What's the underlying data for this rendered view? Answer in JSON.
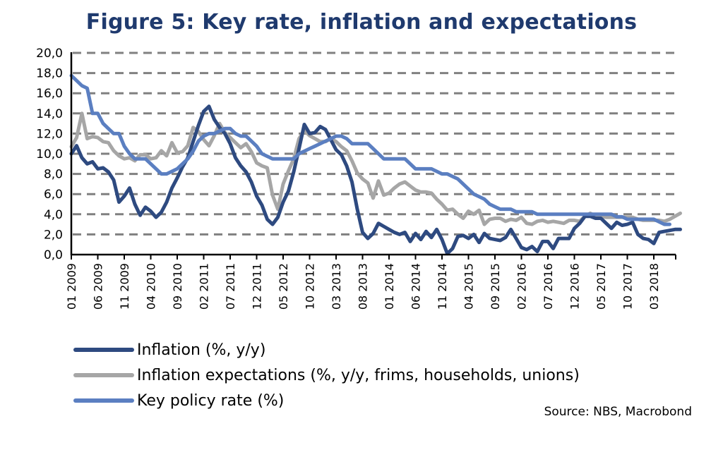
{
  "chart_data": {
    "type": "line",
    "title": "Figure 5: Key rate, inflation and expectations",
    "xlabel": "",
    "ylabel": "",
    "ylim": [
      0,
      20
    ],
    "yticks": [
      "0,0",
      "2,0",
      "4,0",
      "6,0",
      "8,0",
      "10,0",
      "12,0",
      "14,0",
      "16,0",
      "18,0",
      "20,0"
    ],
    "ytick_values": [
      0,
      2,
      4,
      6,
      8,
      10,
      12,
      14,
      16,
      18,
      20
    ],
    "grid": "horizontal-dashed",
    "legend_position": "bottom-left",
    "start_month": "2009-01",
    "xtick_labels": [
      "01 2009",
      "06 2009",
      "11 2009",
      "04 2010",
      "09 2010",
      "02 2011",
      "07 2011",
      "12 2011",
      "05 2012",
      "10 2012",
      "03 2013",
      "08 2013",
      "01 2014",
      "06 2014",
      "11 2014",
      "04 2015",
      "09 2015",
      "02 2016",
      "07 2016",
      "12 2016",
      "05 2017",
      "10 2017",
      "03 2018"
    ],
    "xtick_step_months": 5,
    "colors": {
      "inflation": "#2e4a80",
      "expectations": "#a6a6a6",
      "key_rate": "#5b7fc1"
    },
    "series": [
      {
        "key": "inflation",
        "name": "Inflation (%, y/y)",
        "values": [
          10.0,
          10.8,
          9.6,
          9.0,
          9.2,
          8.5,
          8.6,
          8.2,
          7.4,
          5.2,
          5.8,
          6.6,
          5.0,
          3.9,
          4.7,
          4.3,
          3.7,
          4.2,
          5.2,
          6.6,
          7.6,
          8.7,
          9.6,
          11.2,
          12.8,
          14.2,
          14.7,
          13.4,
          12.6,
          12.0,
          11.0,
          9.6,
          8.8,
          8.2,
          7.2,
          5.8,
          4.9,
          3.5,
          3.0,
          3.7,
          5.2,
          6.3,
          8.2,
          10.5,
          12.9,
          12.0,
          12.1,
          12.7,
          12.4,
          11.4,
          10.4,
          9.9,
          8.8,
          7.2,
          4.5,
          2.2,
          1.6,
          2.1,
          3.1,
          2.8,
          2.5,
          2.2,
          2.0,
          2.2,
          1.3,
          2.1,
          1.5,
          2.3,
          1.7,
          2.5,
          1.5,
          0.1,
          0.6,
          1.8,
          1.9,
          1.6,
          2.0,
          1.2,
          2.1,
          1.6,
          1.5,
          1.4,
          1.7,
          2.5,
          1.6,
          0.7,
          0.5,
          0.8,
          0.3,
          1.3,
          1.3,
          0.6,
          1.6,
          1.6,
          1.6,
          2.6,
          3.1,
          3.8,
          3.8,
          3.6,
          3.6,
          3.1,
          2.6,
          3.2,
          2.9,
          3.0,
          3.2,
          2.0,
          1.6,
          1.5,
          1.1,
          2.2,
          2.3,
          2.4,
          2.5,
          2.5
        ],
        "values_note": "monthly estimates read from chart, 2009-01 onward"
      },
      {
        "key": "expectations",
        "name": "Inflation expectations (%, y/y, frims, households, unions)",
        "values": [
          10.7,
          11.6,
          14.0,
          11.5,
          11.7,
          11.6,
          11.2,
          11.1,
          10.3,
          9.8,
          9.5,
          9.6,
          9.3,
          9.9,
          9.9,
          9.5,
          9.6,
          10.3,
          9.8,
          11.1,
          10.1,
          10.2,
          10.8,
          12.6,
          12.2,
          11.4,
          10.8,
          11.8,
          13.0,
          12.1,
          11.6,
          11.1,
          10.6,
          11.0,
          10.2,
          9.1,
          8.8,
          8.6,
          5.9,
          4.5,
          7.0,
          8.3,
          9.5,
          11.5,
          12.3,
          11.8,
          11.5,
          11.2,
          11.2,
          11.5,
          11.2,
          10.7,
          10.3,
          9.3,
          8.1,
          7.5,
          7.1,
          5.6,
          7.3,
          5.9,
          6.1,
          6.6,
          7.0,
          7.2,
          6.8,
          6.4,
          6.2,
          6.2,
          6.1,
          5.5,
          5.0,
          4.4,
          4.5,
          4.0,
          3.6,
          4.3,
          4.0,
          4.4,
          3.0,
          3.5,
          3.6,
          3.6,
          3.3,
          3.5,
          3.4,
          3.7,
          3.1,
          3.0,
          3.3,
          3.4,
          3.2,
          3.3,
          3.2,
          3.1,
          3.4,
          3.4,
          3.3,
          3.8,
          4.1,
          3.8,
          3.8,
          3.7,
          3.7,
          3.7,
          3.7,
          3.7,
          3.7,
          3.5,
          3.4,
          3.4,
          3.4,
          3.4,
          3.3,
          3.5,
          3.8,
          4.1
        ],
        "values_note": "monthly estimates read from chart, 2009-01 onward"
      },
      {
        "key": "key_rate",
        "name": "Key policy rate (%)",
        "values": [
          17.75,
          17.25,
          16.75,
          16.5,
          14.0,
          14.0,
          13.0,
          12.5,
          12.0,
          12.0,
          10.75,
          10.0,
          9.5,
          9.5,
          9.5,
          9.0,
          8.5,
          8.0,
          8.0,
          8.25,
          8.5,
          9.0,
          9.5,
          10.25,
          11.25,
          11.75,
          12.0,
          12.0,
          12.25,
          12.5,
          12.5,
          12.0,
          11.75,
          11.75,
          11.25,
          10.75,
          10.0,
          9.75,
          9.5,
          9.5,
          9.5,
          9.5,
          9.5,
          10.0,
          10.25,
          10.5,
          10.75,
          11.0,
          11.25,
          11.5,
          11.75,
          11.75,
          11.5,
          11.0,
          11.0,
          11.0,
          11.0,
          10.5,
          10.0,
          9.5,
          9.5,
          9.5,
          9.5,
          9.5,
          9.0,
          8.5,
          8.5,
          8.5,
          8.5,
          8.25,
          8.0,
          8.0,
          7.75,
          7.5,
          7.0,
          6.5,
          6.0,
          5.75,
          5.5,
          5.0,
          4.75,
          4.5,
          4.5,
          4.5,
          4.25,
          4.25,
          4.25,
          4.25,
          4.0,
          4.0,
          4.0,
          4.0,
          4.0,
          4.0,
          4.0,
          4.0,
          4.0,
          4.0,
          4.0,
          4.0,
          4.0,
          4.0,
          4.0,
          3.75,
          3.75,
          3.5,
          3.5,
          3.5,
          3.5,
          3.5,
          3.5,
          3.25,
          3.0,
          3.0
        ],
        "values_note": "monthly estimates read from chart, 2009-01 onward"
      }
    ]
  },
  "source": "Source: NBS, Macrobond"
}
